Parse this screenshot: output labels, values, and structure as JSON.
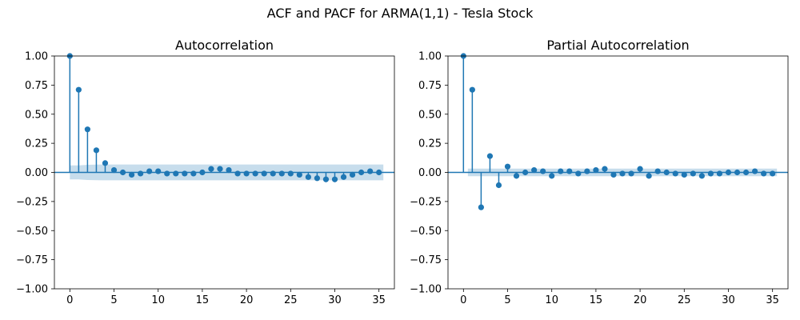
{
  "figure_title": "ACF and PACF for ARMA(1,1) - Tesla Stock",
  "colors": {
    "stem": "#1f77b4",
    "band": "#1f77b4",
    "zero_line": "#1f77b4",
    "axes": "#000000"
  },
  "chart_data": [
    {
      "type": "stem",
      "title": "Autocorrelation",
      "xlabel": "",
      "ylabel": "",
      "xlim": [
        -1.75,
        36.75
      ],
      "ylim": [
        -1.0,
        1.0
      ],
      "xticks": [
        0,
        5,
        10,
        15,
        20,
        25,
        30,
        35
      ],
      "yticks": [
        -1.0,
        -0.75,
        -0.5,
        -0.25,
        0.0,
        0.25,
        0.5,
        0.75,
        1.0
      ],
      "ytick_labels": [
        "−1.00",
        "−0.75",
        "−0.50",
        "−0.25",
        "0.00",
        "0.25",
        "0.50",
        "0.75",
        "1.00"
      ],
      "grid": false,
      "lags": [
        0,
        1,
        2,
        3,
        4,
        5,
        6,
        7,
        8,
        9,
        10,
        11,
        12,
        13,
        14,
        15,
        16,
        17,
        18,
        19,
        20,
        21,
        22,
        23,
        24,
        25,
        26,
        27,
        28,
        29,
        30,
        31,
        32,
        33,
        34,
        35
      ],
      "values": [
        1.0,
        0.71,
        0.37,
        0.19,
        0.08,
        0.02,
        0.0,
        -0.02,
        -0.01,
        0.01,
        0.01,
        -0.01,
        -0.01,
        -0.01,
        -0.01,
        0.0,
        0.03,
        0.03,
        0.02,
        -0.01,
        -0.01,
        -0.01,
        -0.01,
        -0.01,
        -0.01,
        -0.01,
        -0.02,
        -0.04,
        -0.05,
        -0.06,
        -0.06,
        -0.04,
        -0.02,
        0.0,
        0.01,
        0.0
      ],
      "confidence_band": {
        "lags": [
          0,
          1,
          2,
          3,
          4,
          5,
          10,
          20,
          30,
          35.5
        ],
        "halfwidth": [
          0.06,
          0.06,
          0.065,
          0.067,
          0.068,
          0.068,
          0.068,
          0.068,
          0.068,
          0.068
        ]
      }
    },
    {
      "type": "stem",
      "title": "Partial Autocorrelation",
      "xlabel": "",
      "ylabel": "",
      "xlim": [
        -1.75,
        36.75
      ],
      "ylim": [
        -1.0,
        1.0
      ],
      "xticks": [
        0,
        5,
        10,
        15,
        20,
        25,
        30,
        35
      ],
      "yticks": [
        -1.0,
        -0.75,
        -0.5,
        -0.25,
        0.0,
        0.25,
        0.5,
        0.75,
        1.0
      ],
      "ytick_labels": [
        "−1.00",
        "−0.75",
        "−0.50",
        "−0.25",
        "0.00",
        "0.25",
        "0.50",
        "0.75",
        "1.00"
      ],
      "grid": false,
      "lags": [
        0,
        1,
        2,
        3,
        4,
        5,
        6,
        7,
        8,
        9,
        10,
        11,
        12,
        13,
        14,
        15,
        16,
        17,
        18,
        19,
        20,
        21,
        22,
        23,
        24,
        25,
        26,
        27,
        28,
        29,
        30,
        31,
        32,
        33,
        34,
        35
      ],
      "values": [
        1.0,
        0.71,
        -0.3,
        0.14,
        -0.11,
        0.05,
        -0.03,
        0.0,
        0.02,
        0.01,
        -0.03,
        0.01,
        0.01,
        -0.01,
        0.01,
        0.02,
        0.03,
        -0.02,
        -0.01,
        -0.01,
        0.03,
        -0.03,
        0.01,
        0.0,
        -0.01,
        -0.02,
        -0.01,
        -0.03,
        -0.01,
        -0.01,
        0.0,
        0.0,
        0.0,
        0.01,
        -0.01,
        -0.01
      ],
      "confidence_band": {
        "lags": [
          0.5,
          35.5
        ],
        "halfwidth": [
          0.033,
          0.033
        ]
      }
    }
  ]
}
